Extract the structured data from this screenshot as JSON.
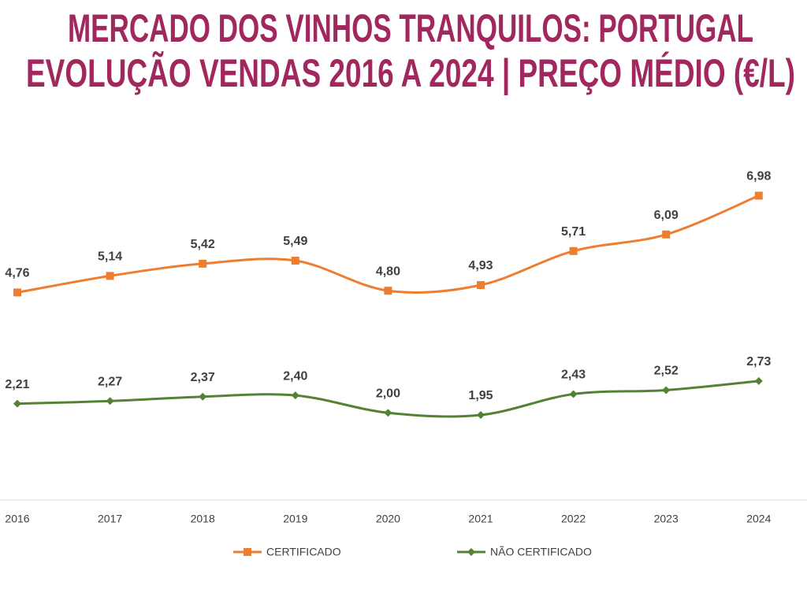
{
  "chart_data": {
    "type": "line",
    "title": "MERCADO DOS VINHOS TRANQUILOS: PORTUGAL",
    "subtitle": "EVOLUÇÃO VENDAS 2016 A 2024 | PREÇO MÉDIO (€/L)",
    "categories": [
      "2016",
      "2017",
      "2018",
      "2019",
      "2020",
      "2021",
      "2022",
      "2023",
      "2024"
    ],
    "series": [
      {
        "name": "CERTIFICADO",
        "color": "#ed7d31",
        "marker": "square",
        "values": [
          4.76,
          5.14,
          5.42,
          5.49,
          4.8,
          4.93,
          5.71,
          6.09,
          6.98
        ],
        "value_labels": [
          "4,76",
          "5,14",
          "5,42",
          "5,49",
          "4,80",
          "4,93",
          "5,71",
          "6,09",
          "6,98"
        ]
      },
      {
        "name": "NÃO CERTIFICADO",
        "color": "#548235",
        "marker": "diamond",
        "values": [
          2.21,
          2.27,
          2.37,
          2.4,
          2.0,
          1.95,
          2.43,
          2.52,
          2.73
        ],
        "value_labels": [
          "2,21",
          "2,27",
          "2,37",
          "2,40",
          "2,00",
          "1,95",
          "2,43",
          "2,52",
          "2,73"
        ]
      }
    ],
    "ylim": [
      0,
      8
    ],
    "smooth": true,
    "legend": "bottom"
  }
}
